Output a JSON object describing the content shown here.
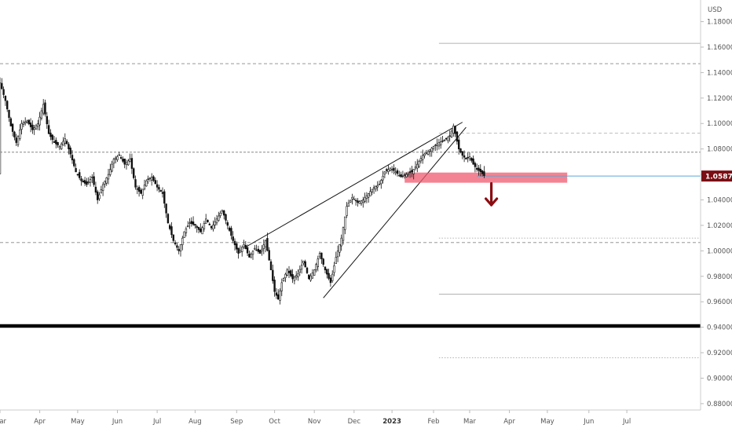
{
  "chart_data": {
    "type": "candlestick",
    "currency_label": "USD",
    "last_price": "1.05875",
    "y_ticks": [
      "0.88000",
      "0.90000",
      "0.92000",
      "0.94000",
      "0.96000",
      "0.98000",
      "1.00000",
      "1.02000",
      "1.04000",
      "1.06000",
      "1.08000",
      "1.10000",
      "1.12000",
      "1.14000",
      "1.16000",
      "1.18000"
    ],
    "ylim": [
      0.875,
      1.197
    ],
    "x_ticks": [
      {
        "label": "Mar",
        "bar": 0
      },
      {
        "label": "Apr",
        "bar": 22
      },
      {
        "label": "May",
        "bar": 43
      },
      {
        "label": "Jun",
        "bar": 65
      },
      {
        "label": "Jul",
        "bar": 87
      },
      {
        "label": "Aug",
        "bar": 108
      },
      {
        "label": "Sep",
        "bar": 131
      },
      {
        "label": "Oct",
        "bar": 152
      },
      {
        "label": "Nov",
        "bar": 174
      },
      {
        "label": "Dec",
        "bar": 196
      },
      {
        "label": "2023",
        "bar": 217,
        "bold": true
      },
      {
        "label": "Feb",
        "bar": 240
      },
      {
        "label": "Mar",
        "bar": 260
      },
      {
        "label": "Apr",
        "bar": 282
      },
      {
        "label": "May",
        "bar": 303
      },
      {
        "label": "Jun",
        "bar": 326
      },
      {
        "label": "Jul",
        "bar": 347
      }
    ],
    "price_path": [
      [
        0,
        1.132
      ],
      [
        3,
        1.118
      ],
      [
        6,
        1.098
      ],
      [
        9,
        1.085
      ],
      [
        12,
        1.1
      ],
      [
        15,
        1.102
      ],
      [
        18,
        1.095
      ],
      [
        21,
        1.1
      ],
      [
        24,
        1.115
      ],
      [
        27,
        1.092
      ],
      [
        30,
        1.085
      ],
      [
        33,
        1.082
      ],
      [
        36,
        1.088
      ],
      [
        39,
        1.076
      ],
      [
        42,
        1.062
      ],
      [
        45,
        1.055
      ],
      [
        48,
        1.052
      ],
      [
        51,
        1.058
      ],
      [
        54,
        1.04
      ],
      [
        57,
        1.052
      ],
      [
        60,
        1.06
      ],
      [
        63,
        1.072
      ],
      [
        66,
        1.075
      ],
      [
        69,
        1.068
      ],
      [
        72,
        1.072
      ],
      [
        75,
        1.05
      ],
      [
        78,
        1.045
      ],
      [
        81,
        1.055
      ],
      [
        84,
        1.058
      ],
      [
        87,
        1.05
      ],
      [
        90,
        1.045
      ],
      [
        93,
        1.022
      ],
      [
        96,
        1.008
      ],
      [
        99,
        1.0
      ],
      [
        102,
        1.015
      ],
      [
        105,
        1.022
      ],
      [
        108,
        1.02
      ],
      [
        111,
        1.015
      ],
      [
        114,
        1.025
      ],
      [
        117,
        1.018
      ],
      [
        120,
        1.025
      ],
      [
        123,
        1.032
      ],
      [
        126,
        1.02
      ],
      [
        129,
        1.008
      ],
      [
        132,
        0.998
      ],
      [
        135,
        1.005
      ],
      [
        138,
        0.995
      ],
      [
        141,
        1.002
      ],
      [
        144,
        0.998
      ],
      [
        147,
        1.008
      ],
      [
        150,
        0.985
      ],
      [
        152,
        0.968
      ],
      [
        154,
        0.962
      ],
      [
        156,
        0.975
      ],
      [
        159,
        0.985
      ],
      [
        162,
        0.978
      ],
      [
        165,
        0.982
      ],
      [
        168,
        0.992
      ],
      [
        171,
        0.978
      ],
      [
        174,
        0.985
      ],
      [
        177,
        0.998
      ],
      [
        180,
        0.985
      ],
      [
        183,
        0.975
      ],
      [
        186,
        0.995
      ],
      [
        189,
        1.01
      ],
      [
        192,
        1.035
      ],
      [
        195,
        1.042
      ],
      [
        198,
        1.038
      ],
      [
        201,
        1.04
      ],
      [
        204,
        1.045
      ],
      [
        207,
        1.05
      ],
      [
        210,
        1.052
      ],
      [
        213,
        1.062
      ],
      [
        216,
        1.065
      ],
      [
        219,
        1.062
      ],
      [
        222,
        1.058
      ],
      [
        225,
        1.06
      ],
      [
        228,
        1.062
      ],
      [
        231,
        1.068
      ],
      [
        234,
        1.075
      ],
      [
        237,
        1.078
      ],
      [
        240,
        1.082
      ],
      [
        243,
        1.085
      ],
      [
        246,
        1.087
      ],
      [
        249,
        1.09
      ],
      [
        251,
        1.098
      ],
      [
        252,
        1.092
      ],
      [
        254,
        1.08
      ],
      [
        256,
        1.075
      ],
      [
        258,
        1.072
      ],
      [
        260,
        1.074
      ],
      [
        262,
        1.068
      ],
      [
        264,
        1.064
      ],
      [
        266,
        1.062
      ],
      [
        268,
        1.059
      ]
    ],
    "annotations": {
      "horizontal_dashed": [
        1.147,
        1.0775,
        1.0065,
        1.0925
      ],
      "horizontal_solid_thin": [
        1.163,
        0.966
      ],
      "horizontal_thick": [
        0.941
      ],
      "dotted_lines": [
        1.01,
        0.916
      ],
      "wedge_upper": [
        [
          136,
          1.003
        ],
        [
          256,
          1.101
        ]
      ],
      "wedge_lower": [
        [
          179,
          0.963
        ],
        [
          258,
          1.097
        ]
      ],
      "resistance_zone": {
        "bar_start": 224,
        "bar_end": 314,
        "top": 1.0615,
        "bottom": 1.0535
      },
      "current_price_line": 1.05875,
      "arrow": {
        "bar": 272,
        "from": 1.053,
        "to": 1.036
      }
    }
  }
}
